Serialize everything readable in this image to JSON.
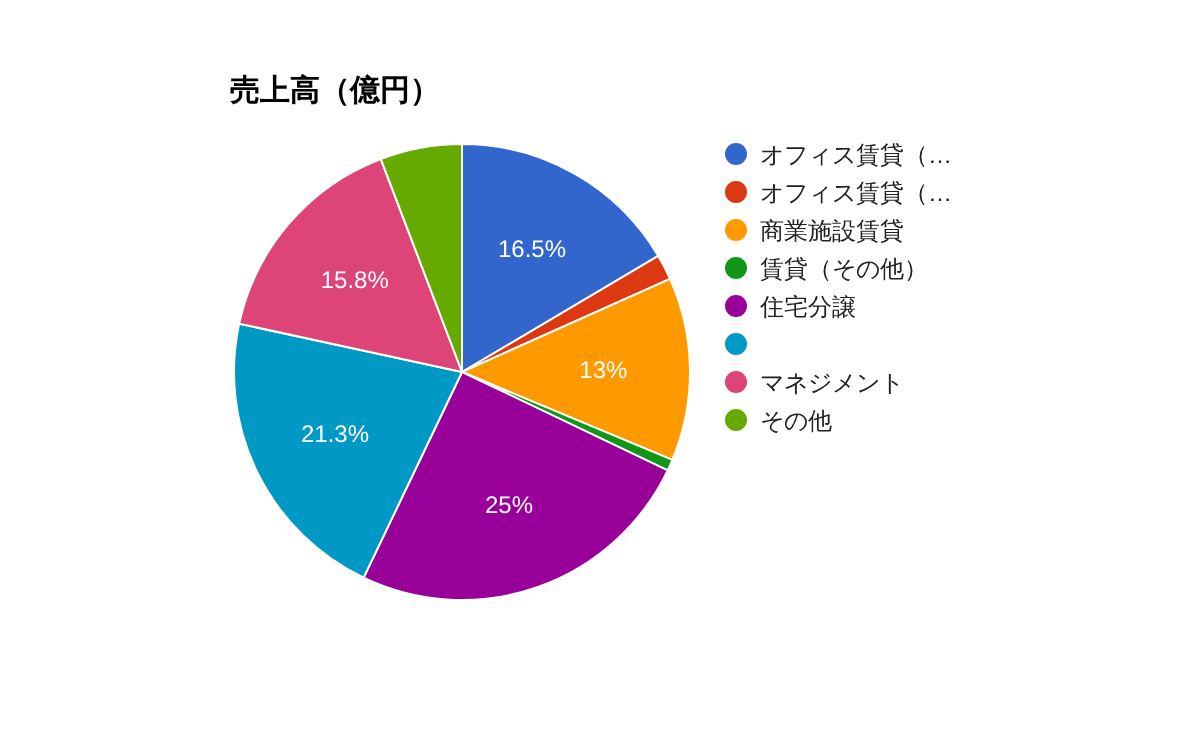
{
  "chart_data": {
    "type": "pie",
    "title": "売上高（億円）",
    "categories": [
      "オフィス賃貸（…",
      "オフィス賃貸（…",
      "商業施設賃貸",
      "賃貸（その他）",
      "住宅分譲",
      null,
      "マネジメント",
      "その他"
    ],
    "values": [
      16.5,
      1.8,
      13,
      0.8,
      25,
      21.3,
      15.8,
      5.8
    ],
    "value_labels": [
      "16.5%",
      null,
      "13%",
      null,
      "25%",
      "21.3%",
      "15.8%",
      null
    ],
    "colors": [
      "#3366cc",
      "#dc3912",
      "#ff9900",
      "#109618",
      "#990099",
      "#0099c6",
      "#dd4477",
      "#66aa00"
    ],
    "legend": "right"
  }
}
